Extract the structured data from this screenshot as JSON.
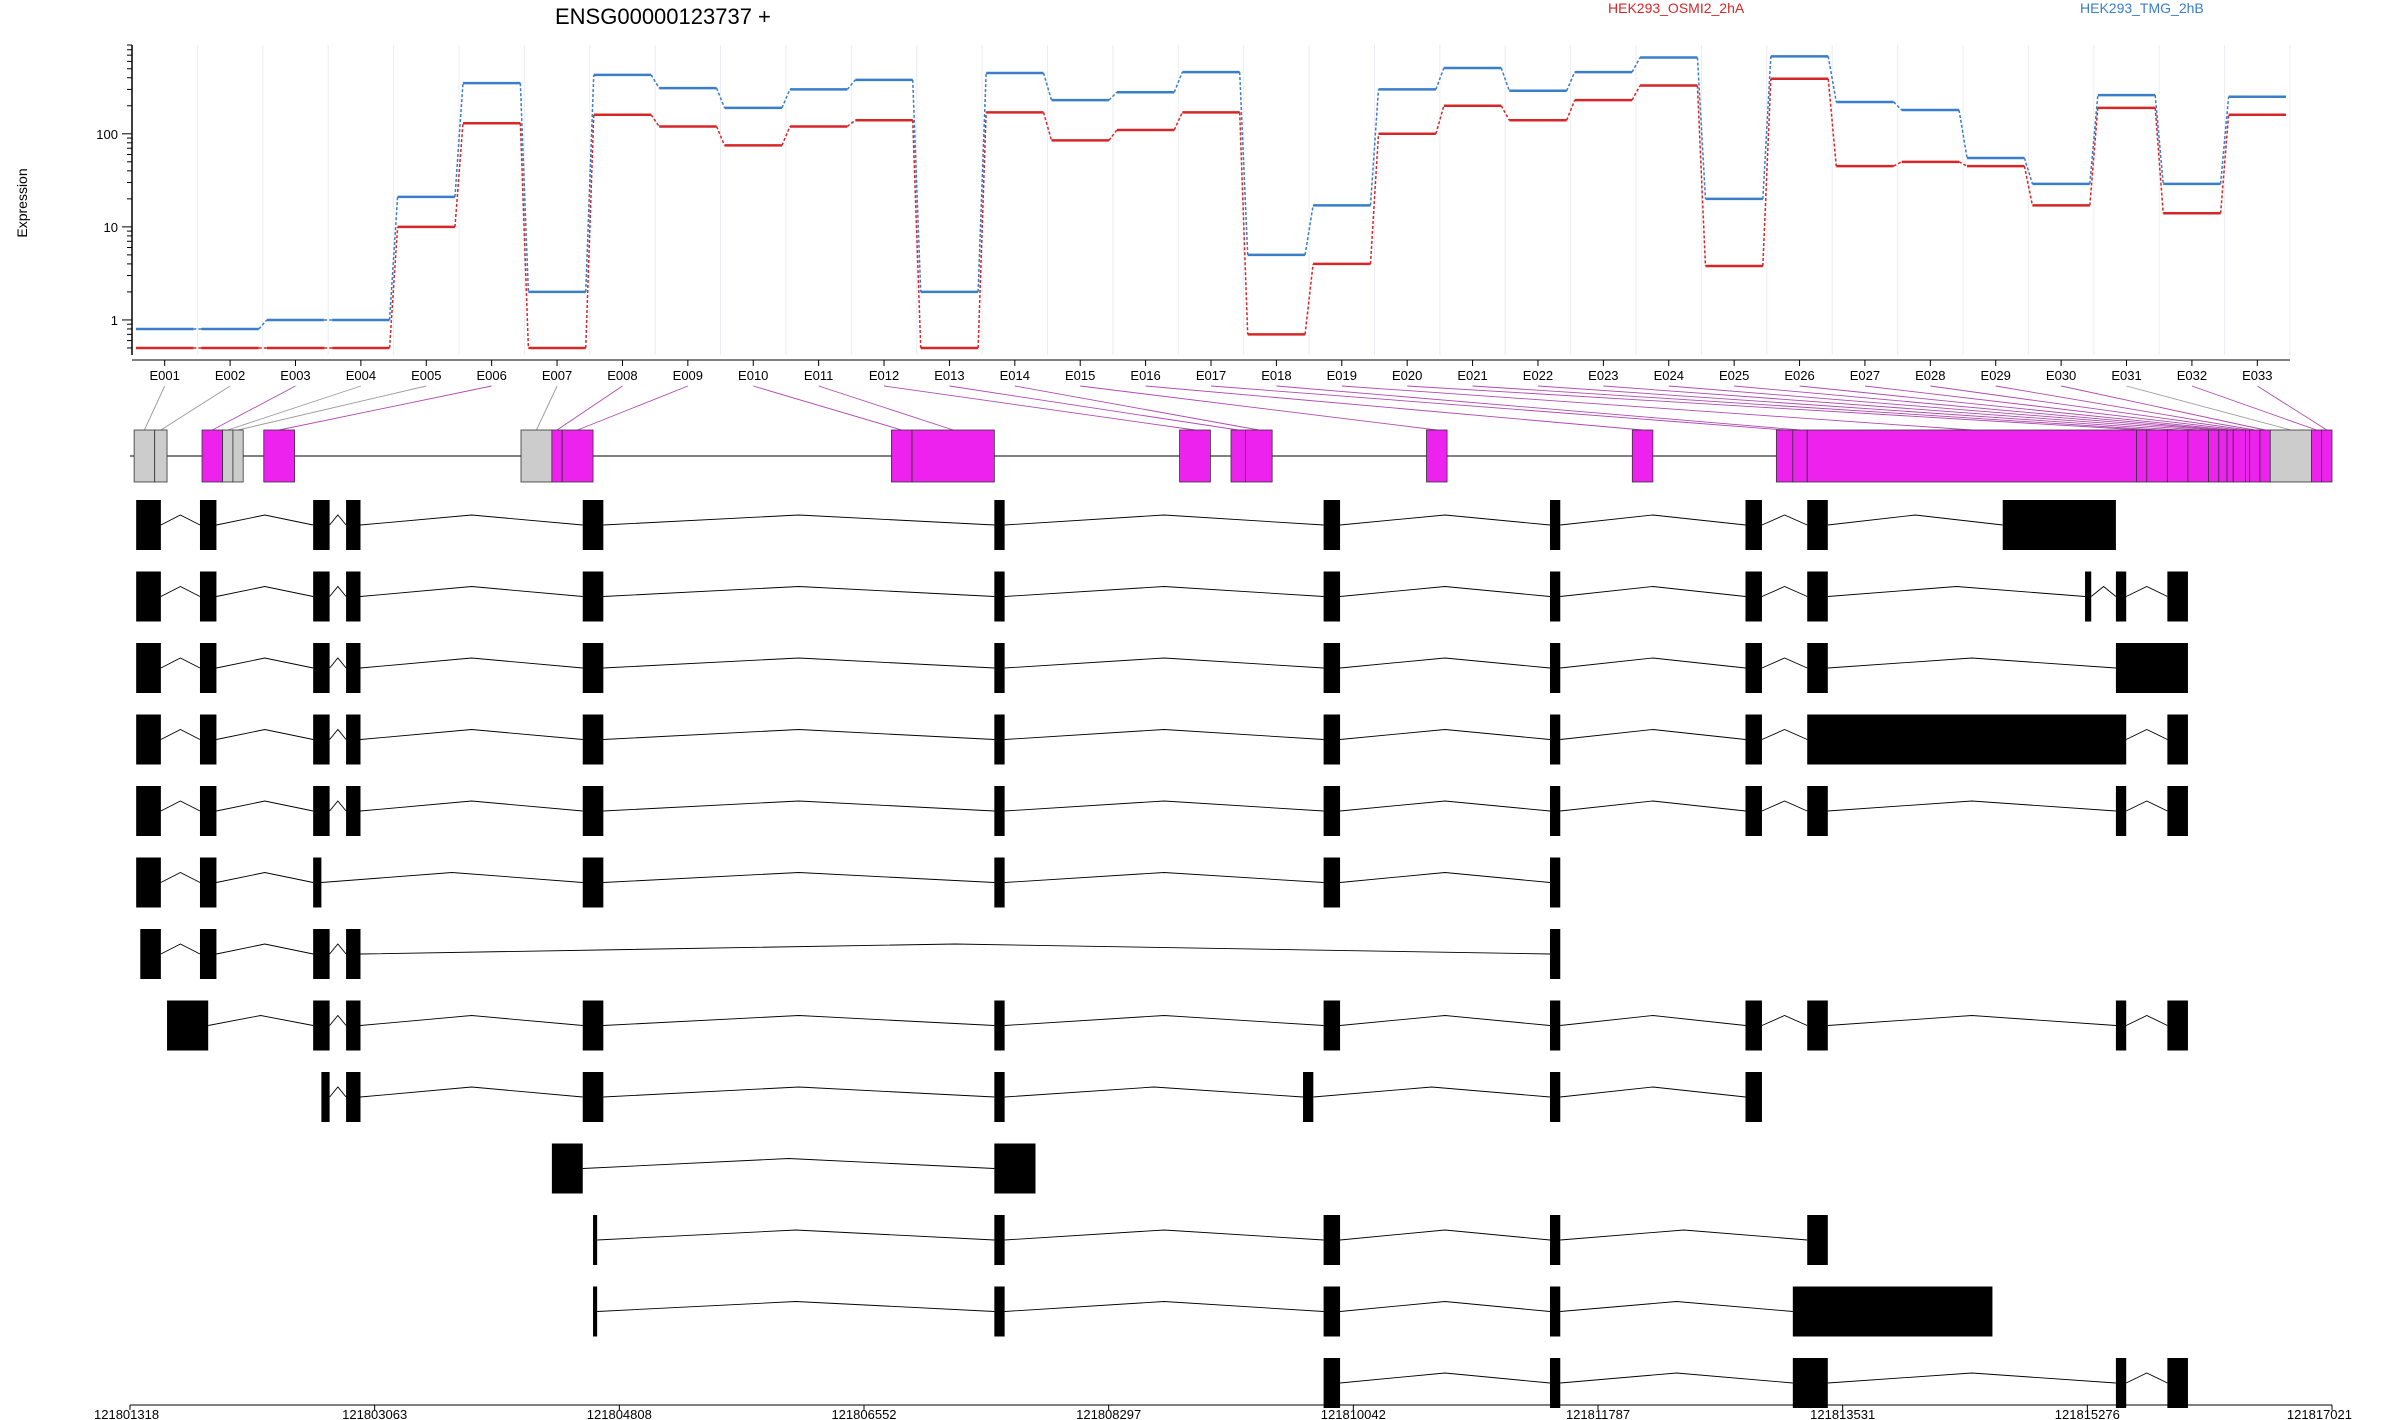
{
  "chart_data": {
    "type": "line",
    "title": "ENSG00000123737 +",
    "ylabel": "Expression",
    "yscale": "log",
    "y_ticks": [
      1,
      10,
      100
    ],
    "y_tick_labels": [
      "1",
      "10",
      "100"
    ],
    "categories": [
      "E001",
      "E002",
      "E003",
      "E004",
      "E005",
      "E006",
      "E007",
      "E008",
      "E009",
      "E010",
      "E011",
      "E012",
      "E013",
      "E014",
      "E015",
      "E016",
      "E017",
      "E018",
      "E019",
      "E020",
      "E021",
      "E022",
      "E023",
      "E024",
      "E025",
      "E026",
      "E027",
      "E028",
      "E029",
      "E030",
      "E031",
      "E032",
      "E033"
    ],
    "series": [
      {
        "name": "HEK293_OSMI2_2hA",
        "color": "#d62728",
        "values": [
          0.5,
          0.5,
          0.5,
          0.5,
          10,
          130,
          0.5,
          160,
          120,
          75,
          120,
          140,
          0.5,
          170,
          85,
          110,
          170,
          0.7,
          4,
          100,
          200,
          140,
          230,
          330,
          3.8,
          390,
          45,
          50,
          45,
          17,
          190,
          14,
          160
        ]
      },
      {
        "name": "HEK293_TMG_2hB",
        "color": "#3a7dc9",
        "values": [
          0.8,
          0.8,
          1.0,
          1.0,
          21,
          350,
          2.0,
          430,
          310,
          190,
          300,
          380,
          2.0,
          450,
          230,
          280,
          460,
          5,
          17,
          300,
          510,
          290,
          460,
          660,
          20,
          680,
          220,
          180,
          55,
          29,
          260,
          29,
          250
        ]
      }
    ],
    "x_ticks": [
      "121801318",
      "121803063",
      "121804808",
      "121806552",
      "121808297",
      "121810042",
      "121811787",
      "121813531",
      "121815276",
      "121817021"
    ],
    "gene_model": {
      "exon_colors": [
        "gray",
        "gray",
        "magenta",
        "gray",
        "gray",
        "magenta",
        "gray",
        "magenta",
        "magenta",
        "magenta",
        "magenta",
        "magenta",
        "magenta",
        "magenta",
        "magenta",
        "magenta",
        "magenta",
        "magenta",
        "magenta",
        "magenta",
        "magenta",
        "magenta",
        "magenta",
        "magenta",
        "magenta",
        "magenta",
        "magenta",
        "magenta",
        "magenta",
        "magenta",
        "gray",
        "magenta",
        "magenta"
      ],
      "exon_bounds": [
        [
          0.2,
          1.2
        ],
        [
          1.2,
          1.8
        ],
        [
          3.5,
          4.5
        ],
        [
          4.5,
          5.0
        ],
        [
          5.0,
          5.5
        ],
        [
          6.5,
          8.0
        ],
        [
          19.0,
          20.5
        ],
        [
          20.5,
          21.0
        ],
        [
          21.0,
          22.5
        ],
        [
          37.0,
          38.0
        ],
        [
          38.0,
          42.0
        ],
        [
          51.0,
          52.5
        ],
        [
          53.5,
          54.2
        ],
        [
          54.2,
          55.5
        ],
        [
          63.0,
          64.0
        ],
        [
          73.0,
          74.0
        ],
        [
          80.0,
          80.8
        ],
        [
          80.8,
          81.5
        ],
        [
          81.5,
          97.5
        ],
        [
          97.5,
          98.0
        ],
        [
          98.0,
          99.0
        ],
        [
          99.0,
          100.0
        ],
        [
          100.0,
          101.0
        ],
        [
          101.0,
          101.5
        ],
        [
          101.5,
          101.9
        ],
        [
          101.9,
          102.2
        ],
        [
          102.2,
          102.8
        ],
        [
          102.8,
          103.0
        ],
        [
          103.0,
          103.5
        ],
        [
          103.5,
          104.0
        ],
        [
          104.0,
          106.0
        ],
        [
          106.0,
          106.5
        ],
        [
          106.5,
          107.0
        ]
      ],
      "transcripts": [
        [
          [
            0.3,
            1.5
          ],
          [
            3.4,
            4.2
          ],
          [
            8.9,
            9.7
          ],
          [
            10.5,
            11.2
          ],
          [
            22.0,
            23.0
          ],
          [
            42.0,
            42.5
          ],
          [
            58.0,
            58.8
          ],
          [
            69.0,
            69.5
          ],
          [
            78.5,
            79.3
          ],
          [
            81.5,
            82.5
          ],
          [
            91.0,
            96.5
          ]
        ],
        [
          [
            0.3,
            1.5
          ],
          [
            3.4,
            4.2
          ],
          [
            8.9,
            9.7
          ],
          [
            10.5,
            11.2
          ],
          [
            22.0,
            23.0
          ],
          [
            42.0,
            42.5
          ],
          [
            58.0,
            58.8
          ],
          [
            69.0,
            69.5
          ],
          [
            78.5,
            79.3
          ],
          [
            81.5,
            82.5
          ],
          [
            95.0,
            95.3
          ],
          [
            96.5,
            97.0
          ],
          [
            99.0,
            100.0
          ]
        ],
        [
          [
            0.3,
            1.5
          ],
          [
            3.4,
            4.2
          ],
          [
            8.9,
            9.7
          ],
          [
            10.5,
            11.2
          ],
          [
            22.0,
            23.0
          ],
          [
            42.0,
            42.5
          ],
          [
            58.0,
            58.8
          ],
          [
            69.0,
            69.5
          ],
          [
            78.5,
            79.3
          ],
          [
            81.5,
            82.5
          ],
          [
            96.5,
            100.0
          ]
        ],
        [
          [
            0.3,
            1.5
          ],
          [
            3.4,
            4.2
          ],
          [
            8.9,
            9.7
          ],
          [
            10.5,
            11.2
          ],
          [
            22.0,
            23.0
          ],
          [
            42.0,
            42.5
          ],
          [
            58.0,
            58.8
          ],
          [
            69.0,
            69.5
          ],
          [
            78.5,
            79.3
          ],
          [
            81.5,
            97.0
          ],
          [
            99.0,
            100.0
          ]
        ],
        [
          [
            0.3,
            1.5
          ],
          [
            3.4,
            4.2
          ],
          [
            8.9,
            9.7
          ],
          [
            10.5,
            11.2
          ],
          [
            22.0,
            23.0
          ],
          [
            42.0,
            42.5
          ],
          [
            58.0,
            58.8
          ],
          [
            69.0,
            69.5
          ],
          [
            78.5,
            79.3
          ],
          [
            81.5,
            82.5
          ],
          [
            96.5,
            97.0
          ],
          [
            99.0,
            100.0
          ]
        ],
        [
          [
            0.3,
            1.5
          ],
          [
            3.4,
            4.2
          ],
          [
            8.9,
            9.3
          ],
          [
            22.0,
            23.0
          ],
          [
            42.0,
            42.5
          ],
          [
            58.0,
            58.8
          ],
          [
            69.0,
            69.5
          ]
        ],
        [
          [
            0.5,
            1.5
          ],
          [
            3.4,
            4.2
          ],
          [
            8.9,
            9.7
          ],
          [
            10.5,
            11.2
          ],
          [
            69.0,
            69.5
          ]
        ],
        [
          [
            1.8,
            3.8
          ],
          [
            8.9,
            9.7
          ],
          [
            10.5,
            11.2
          ],
          [
            22.0,
            23.0
          ],
          [
            42.0,
            42.5
          ],
          [
            58.0,
            58.8
          ],
          [
            69.0,
            69.5
          ],
          [
            78.5,
            79.3
          ],
          [
            81.5,
            82.5
          ],
          [
            96.5,
            97.0
          ],
          [
            99.0,
            100.0
          ]
        ],
        [
          [
            9.3,
            9.7
          ],
          [
            10.5,
            11.2
          ],
          [
            22.0,
            23.0
          ],
          [
            42.0,
            42.5
          ],
          [
            57.0,
            57.5
          ],
          [
            69.0,
            69.5
          ],
          [
            78.5,
            79.3
          ]
        ],
        [
          [
            20.5,
            22.0
          ],
          [
            42.0,
            44.0
          ]
        ],
        [
          [
            22.5,
            22.7
          ],
          [
            42.0,
            42.5
          ],
          [
            58.0,
            58.8
          ],
          [
            69.0,
            69.5
          ],
          [
            81.5,
            82.5
          ]
        ],
        [
          [
            22.5,
            22.7
          ],
          [
            42.0,
            42.5
          ],
          [
            58.0,
            58.8
          ],
          [
            69.0,
            69.5
          ],
          [
            80.8,
            90.5
          ]
        ],
        [
          [
            58.0,
            58.8
          ],
          [
            69.0,
            69.5
          ],
          [
            80.8,
            82.5
          ],
          [
            96.5,
            97.0
          ],
          [
            99.0,
            100.0
          ]
        ]
      ]
    }
  }
}
